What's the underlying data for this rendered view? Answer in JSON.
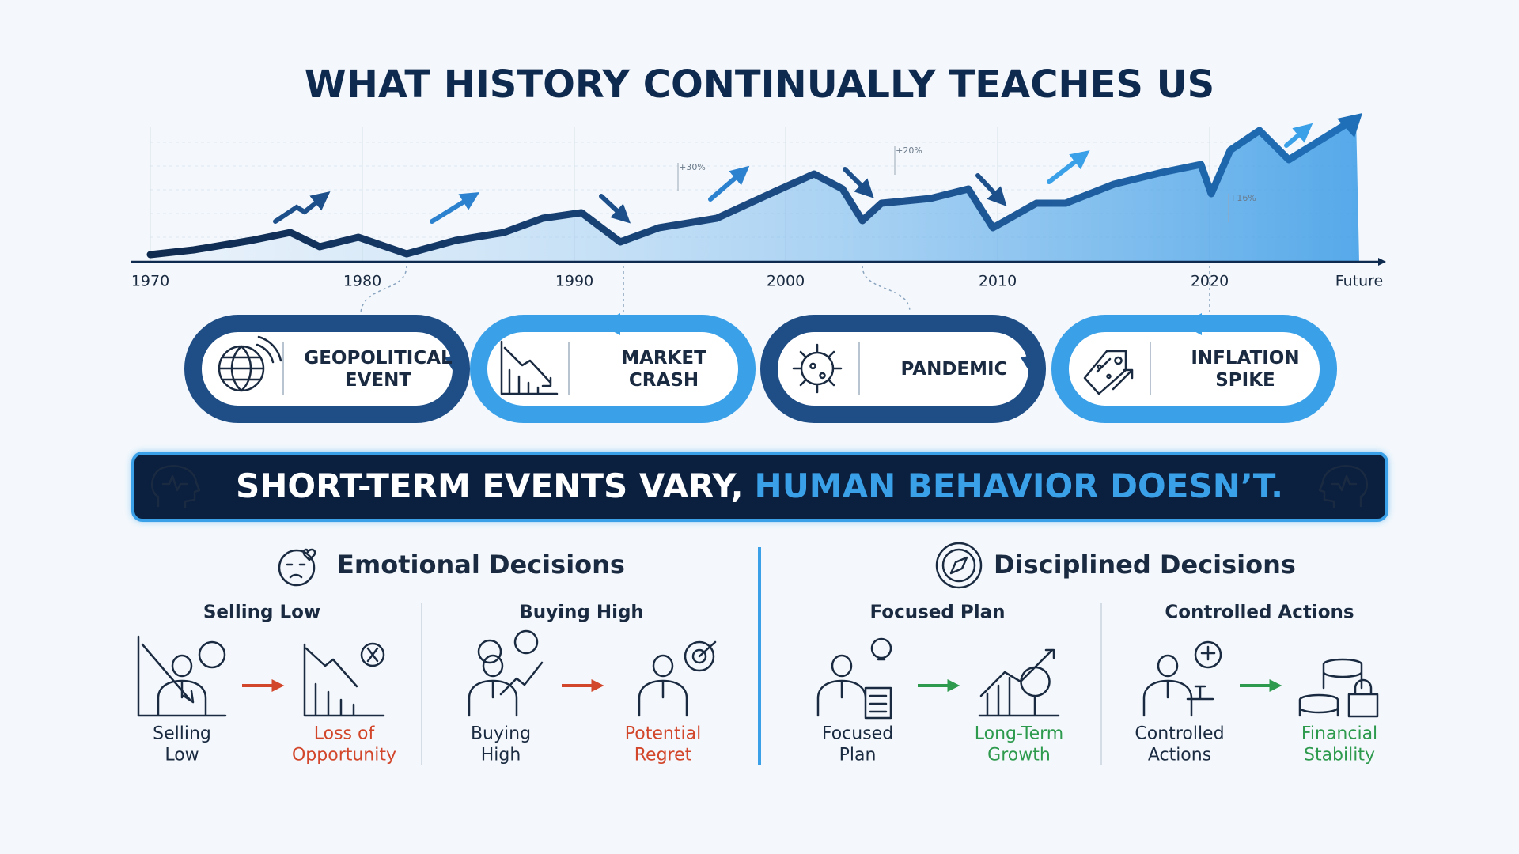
{
  "title": "WHAT HISTORY CONTINUALLY TEACHES US",
  "timeline": {
    "x_labels": [
      "1970",
      "1980",
      "1990",
      "2000",
      "2010",
      "2020",
      "Future"
    ],
    "annotations": [
      "+30%",
      "+20%",
      "+16%"
    ]
  },
  "events": [
    {
      "label": [
        "GEOPOLITICAL",
        "EVENT"
      ]
    },
    {
      "label": [
        "MARKET",
        "CRASH"
      ]
    },
    {
      "label": [
        "PANDEMIC"
      ]
    },
    {
      "label": [
        "INFLATION",
        "SPIKE"
      ]
    }
  ],
  "banner": {
    "part1": "SHORT-TERM EVENTS VARY,",
    "part2": "HUMAN BEHAVIOR DOESN’T."
  },
  "sections": [
    {
      "title": "Emotional Decisions",
      "groups": [
        {
          "title": "Selling Low",
          "from": [
            "Selling",
            "Low"
          ],
          "to": [
            "Loss of",
            "Opportunity"
          ]
        },
        {
          "title": "Buying High",
          "from": [
            "Buying",
            "High"
          ],
          "to": [
            "Potential",
            "Regret"
          ]
        }
      ]
    },
    {
      "title": "Disciplined Decisions",
      "groups": [
        {
          "title": "Focused Plan",
          "from": [
            "Focused",
            "Plan"
          ],
          "to": [
            "Long-Term",
            "Growth"
          ]
        },
        {
          "title": "Controlled Actions",
          "from": [
            "Controlled",
            "Actions"
          ],
          "to": [
            "Financial",
            "Stability"
          ]
        }
      ]
    }
  ]
}
